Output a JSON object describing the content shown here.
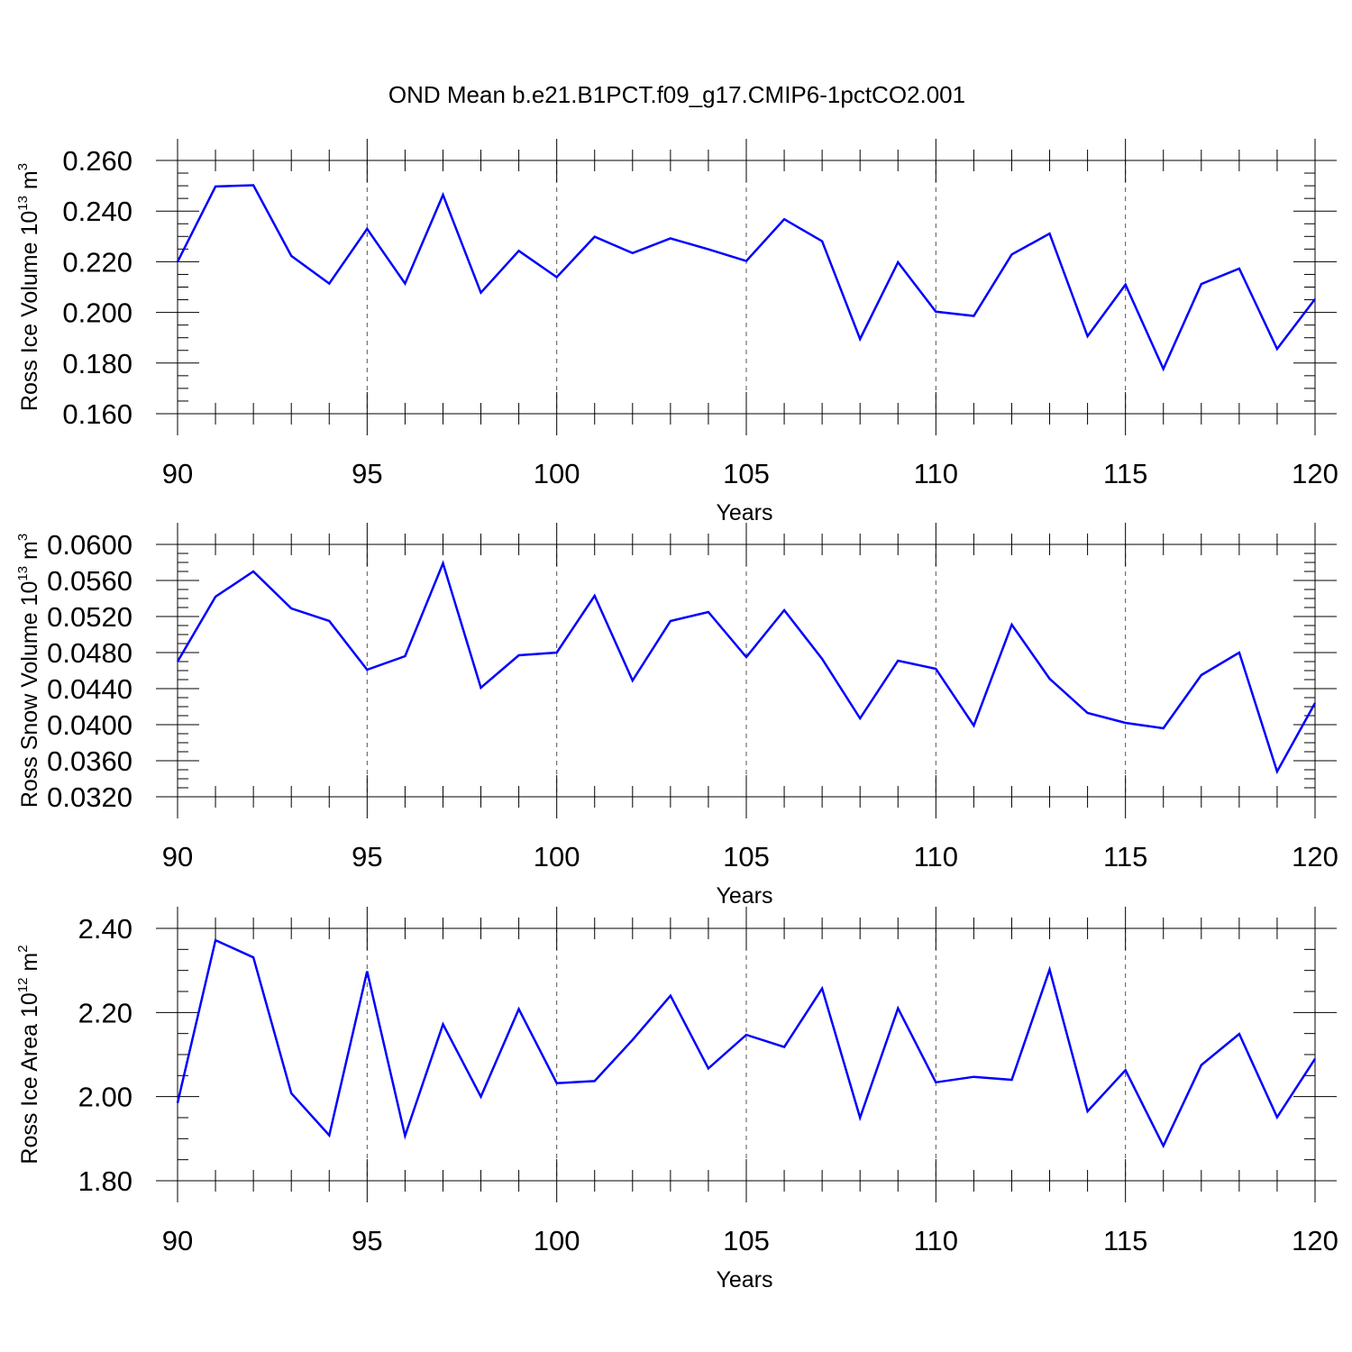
{
  "figure": {
    "title": "OND Mean b.e21.B1PCT.f09_g17.CMIP6-1pctCO2.001"
  },
  "colors": {
    "series": "#0000ff",
    "axes": "#000000",
    "grid": "#555555"
  },
  "chart_data": [
    {
      "type": "line",
      "xlabel": "Years",
      "ylabel": {
        "main": "Ross Ice Volume 10",
        "sup": "13",
        "unit": " m",
        "unit_sup": "3"
      },
      "xlim": [
        90,
        120
      ],
      "ylim": [
        0.16,
        0.26
      ],
      "x_ticks": [
        90,
        95,
        100,
        105,
        110,
        115,
        120
      ],
      "x_tick_labels": [
        "90",
        "95",
        "100",
        "105",
        "110",
        "115",
        "120"
      ],
      "y_ticks": [
        0.16,
        0.18,
        0.2,
        0.22,
        0.24,
        0.26
      ],
      "y_tick_labels": [
        "0.160",
        "0.180",
        "0.200",
        "0.220",
        "0.240",
        "0.260"
      ],
      "y_minor_step": 0.005,
      "x_minor_step": 1,
      "grid": "vertical-dashed at major x ticks",
      "x": [
        90,
        91,
        92,
        93,
        94,
        95,
        96,
        97,
        98,
        99,
        100,
        101,
        102,
        103,
        104,
        105,
        106,
        107,
        108,
        109,
        110,
        111,
        112,
        113,
        114,
        115,
        116,
        117,
        118,
        119,
        120
      ],
      "series": [
        {
          "values": [
            0.22,
            0.2497,
            0.2502,
            0.2223,
            0.2114,
            0.233,
            0.2114,
            0.2464,
            0.2078,
            0.2243,
            0.2139,
            0.2299,
            0.2234,
            0.2292,
            0.2249,
            0.2203,
            0.2368,
            0.2281,
            0.1895,
            0.2198,
            0.2003,
            0.1986,
            0.2229,
            0.2311,
            0.1906,
            0.211,
            0.1777,
            0.2112,
            0.2173,
            0.1856,
            0.2053
          ]
        }
      ]
    },
    {
      "type": "line",
      "xlabel": "Years",
      "ylabel": {
        "main": "Ross Snow Volume 10",
        "sup": "13",
        "unit": " m",
        "unit_sup": "3"
      },
      "xlim": [
        90,
        120
      ],
      "ylim": [
        0.032,
        0.06
      ],
      "x_ticks": [
        90,
        95,
        100,
        105,
        110,
        115,
        120
      ],
      "x_tick_labels": [
        "90",
        "95",
        "100",
        "105",
        "110",
        "115",
        "120"
      ],
      "y_ticks": [
        0.032,
        0.036,
        0.04,
        0.044,
        0.048,
        0.052,
        0.056,
        0.06
      ],
      "y_tick_labels": [
        "0.0320",
        "0.0360",
        "0.0400",
        "0.0440",
        "0.0480",
        "0.0520",
        "0.0560",
        "0.0600"
      ],
      "y_minor_step": 0.001,
      "x_minor_step": 1,
      "grid": "vertical-dashed at major x ticks",
      "x": [
        90,
        91,
        92,
        93,
        94,
        95,
        96,
        97,
        98,
        99,
        100,
        101,
        102,
        103,
        104,
        105,
        106,
        107,
        108,
        109,
        110,
        111,
        112,
        113,
        114,
        115,
        116,
        117,
        118,
        119,
        120
      ],
      "series": [
        {
          "values": [
            0.047,
            0.0542,
            0.057,
            0.0529,
            0.0515,
            0.0461,
            0.0476,
            0.0579,
            0.0441,
            0.0477,
            0.048,
            0.0543,
            0.0449,
            0.0515,
            0.0525,
            0.0475,
            0.0527,
            0.0473,
            0.0407,
            0.0471,
            0.0462,
            0.0399,
            0.0511,
            0.0451,
            0.0413,
            0.0402,
            0.0396,
            0.0455,
            0.048,
            0.0348,
            0.0424
          ]
        }
      ]
    },
    {
      "type": "line",
      "xlabel": "Years",
      "ylabel": {
        "main": "Ross Ice Area 10",
        "sup": "12",
        "unit": " m",
        "unit_sup": "2"
      },
      "xlim": [
        90,
        120
      ],
      "ylim": [
        1.8,
        2.4
      ],
      "x_ticks": [
        90,
        95,
        100,
        105,
        110,
        115,
        120
      ],
      "x_tick_labels": [
        "90",
        "95",
        "100",
        "105",
        "110",
        "115",
        "120"
      ],
      "y_ticks": [
        1.8,
        2.0,
        2.2,
        2.4
      ],
      "y_tick_labels": [
        "1.80",
        "2.00",
        "2.20",
        "2.40"
      ],
      "y_minor_step": 0.05,
      "x_minor_step": 1,
      "grid": "vertical-dashed at major x ticks",
      "x": [
        90,
        91,
        92,
        93,
        94,
        95,
        96,
        97,
        98,
        99,
        100,
        101,
        102,
        103,
        104,
        105,
        106,
        107,
        108,
        109,
        110,
        111,
        112,
        113,
        114,
        115,
        116,
        117,
        118,
        119,
        120
      ],
      "series": [
        {
          "values": [
            1.985,
            2.372,
            2.331,
            2.008,
            1.908,
            2.298,
            1.907,
            2.172,
            2.0,
            2.208,
            2.032,
            2.037,
            2.135,
            2.24,
            2.067,
            2.147,
            2.118,
            2.257,
            1.95,
            2.21,
            2.034,
            2.047,
            2.04,
            2.302,
            1.965,
            2.063,
            1.883,
            2.075,
            2.149,
            1.951,
            2.09
          ]
        }
      ]
    }
  ]
}
